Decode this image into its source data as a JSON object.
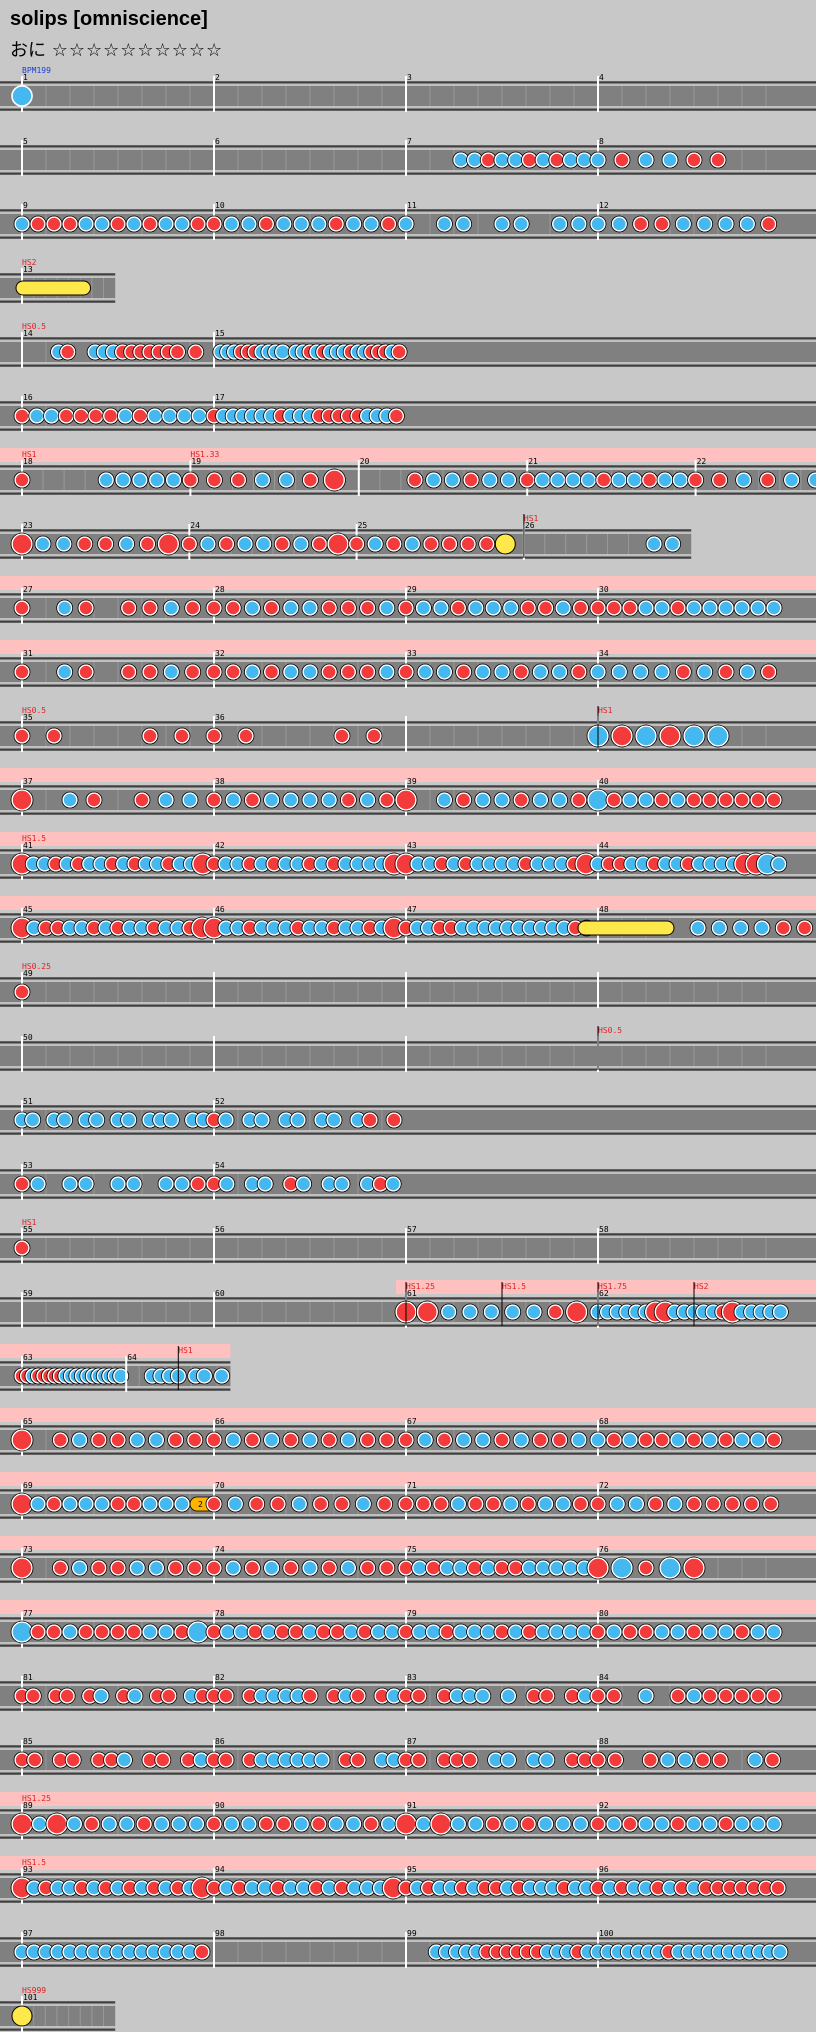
{
  "header": {
    "title": "solips [omniscience]",
    "difficulty_label": "おに",
    "stars": "☆☆☆☆☆☆☆☆☆☆"
  },
  "colors": {
    "background": "#c8c8c8",
    "lane": "#808080",
    "lane_line": "#ffffff",
    "scroll_zone": "#ffc0c0",
    "don": "#f33b3b",
    "ka": "#45b8ef",
    "roll": "#ffe84a",
    "balloon": "#ffb400",
    "bpm_text": "#1a3fd1",
    "hs_text": "#e02020"
  },
  "legend": {
    "don_icon": "red-circle-icon",
    "ka_icon": "blue-circle-icon",
    "roll_icon": "yellow-drumroll-icon",
    "balloon_icon": "balloon-icon"
  },
  "labels": {
    "bpm": [
      "BPM199"
    ],
    "hs": [
      "HS2",
      "HS0.5",
      "HS1",
      "HS1.33",
      "HS1",
      "HS0.5",
      "HS1",
      "HS1.5",
      "HS0.25",
      "HS0.5",
      "HS1",
      "HS1.25",
      "HS1.5",
      "HS1.75",
      "HS2",
      "HS1",
      "HS1.25",
      "HS1.5",
      "HS999"
    ],
    "balloon_hits": "2"
  },
  "rows": [
    {
      "hs": [
        {
          "t": "BPM199",
          "cls": "bpm",
          "bar": 0
        }
      ],
      "bars": [
        {
          "n": "1",
          "notes": "o.............................................................................................................................................................................................................................."
        },
        {
          "n": "2",
          "notes": ""
        },
        {
          "n": "3",
          "notes": ""
        },
        {
          "n": "4",
          "notes": ""
        }
      ]
    },
    {
      "bars": [
        {
          "n": "5",
          "notes": ""
        },
        {
          "n": "6",
          "notes": ""
        },
        {
          "n": "7",
          "notes": "....kkdkkdkdkk"
        },
        {
          "n": "8",
          "notes": "kdkkdd"
        }
      ]
    },
    {
      "bars": [
        {
          "n": "9",
          "notes": "kdddkkdkdkkd"
        },
        {
          "n": "10",
          "notes": "dkkdkkkdkkd"
        },
        {
          "n": "11",
          "notes": "k.kk.kk.kk"
        },
        {
          "n": "12",
          "notes": "kkddkkkkd"
        }
      ]
    },
    {
      "short": true,
      "hs": [
        {
          "t": "HS2",
          "bar": 0
        }
      ],
      "bars": [
        {
          "n": "13",
          "roll": true
        }
      ]
    },
    {
      "hs": [
        {
          "t": "HS0.5",
          "bar": 0
        }
      ],
      "bars": [
        {
          "n": "14",
          "notes": "....kd..kkkddddddd.d."
        },
        {
          "n": "15",
          "notes": ".kkkdddkkkk.kkdkdkkkdkkdddkd"
        }
      ]
    },
    {
      "bars": [
        {
          "n": "16",
          "notes": "dkkddddkdkkkk"
        },
        {
          "n": "17",
          "notes": "dkkkkkkdkkkdddddkkkd"
        }
      ]
    },
    {
      "short": true,
      "pink": true,
      "hs": [
        {
          "t": "HS1",
          "bar": 0
        },
        {
          "t": "HS1.33",
          "bar": 1
        }
      ],
      "bars": [
        {
          "n": "18",
          "notes": "d....kkkkk"
        },
        {
          "n": "19",
          "notes": "dddkkdD"
        },
        {
          "n": "20",
          "notes": "...dkkdkk"
        },
        {
          "n": "21",
          "notes": "dkkkkdkkdkk"
        },
        {
          "n": "22",
          "notes": "ddkdkkk"
        }
      ]
    },
    {
      "short": true,
      "hs": [
        {
          "t": "HS1",
          "bar": 3
        }
      ],
      "bars": [
        {
          "n": "23",
          "notes": "DkkddkdD"
        },
        {
          "n": "24",
          "notes": "dkdkkdkdD"
        },
        {
          "n": "25",
          "notes": "dkdkddddY"
        },
        {
          "n": "26",
          "notes": ".......kk"
        }
      ]
    },
    {
      "pink": true,
      "bars": [
        {
          "n": "27",
          "notes": "d.kd.ddkd"
        },
        {
          "n": "28",
          "notes": "ddkdkkdddk"
        },
        {
          "n": "29",
          "notes": "dkkdkkkddkd"
        },
        {
          "n": "30",
          "notes": "dddkkdkkkkkk"
        }
      ]
    },
    {
      "pink": true,
      "bars": [
        {
          "n": "31",
          "notes": "d.kd.ddkd"
        },
        {
          "n": "32",
          "notes": "ddkdkkdddk"
        },
        {
          "n": "33",
          "notes": "dkkdkkdkkd"
        },
        {
          "n": "34",
          "notes": "kkkkdkdkd"
        }
      ]
    },
    {
      "hs": [
        {
          "t": "HS0.5",
          "bar": 0
        },
        {
          "t": "HS1",
          "bar": 3
        }
      ],
      "bars": [
        {
          "n": "35",
          "notes": "d.d.....d.d."
        },
        {
          "n": "36",
          "notes": "d.d.....d.d."
        },
        {
          "n": "",
          "notes": ""
        },
        {
          "n": "",
          "notes": "KDKDKK"
        }
      ]
    },
    {
      "pink": true,
      "bars": [
        {
          "n": "37",
          "notes": "D.kd.dkk"
        },
        {
          "n": "38",
          "notes": "dkdkkkkdkd"
        },
        {
          "n": "39",
          "notes": "D.kdkkdkkd"
        },
        {
          "n": "40",
          "notes": "Kdkkdkdddddd"
        }
      ]
    },
    {
      "pink": true,
      "hs": [
        {
          "t": "HS1.5",
          "bar": 0
        }
      ],
      "bars": [
        {
          "n": "41",
          "notes": "DkkdkdkkdkdkkdkkD"
        },
        {
          "n": "42",
          "notes": "dkkdkdkkdkdkkkkD"
        },
        {
          "n": "43",
          "notes": "DkkdkdkkkkdkkkdD"
        },
        {
          "n": "44",
          "notes": "kddkkdkkdkkkkDDKk"
        }
      ]
    },
    {
      "pink": true,
      "bars": [
        {
          "n": "45",
          "notes": "DkddkkdkdkkdkkdD"
        },
        {
          "n": "46",
          "notes": "DkkdkkkdkkdkkdkD"
        },
        {
          "n": "47",
          "notes": "dkkddkkkkkkkkkkdk"
        },
        {
          "n": "48",
          "roll2": true,
          "notes": "kkkkddddd"
        }
      ]
    },
    {
      "hs": [
        {
          "t": "HS0.25",
          "bar": 0
        }
      ],
      "bars": [
        {
          "n": "49",
          "notes": "d"
        },
        {
          "n": "",
          "notes": ""
        },
        {
          "n": "",
          "notes": ""
        },
        {
          "n": "",
          "notes": ""
        }
      ]
    },
    {
      "hs": [
        {
          "t": "HS0.5",
          "bar": 3
        }
      ],
      "bars": [
        {
          "n": "50",
          "notes": ""
        },
        {
          "n": "",
          "notes": ""
        },
        {
          "n": "",
          "notes": ""
        },
        {
          "n": "",
          "notes": ""
        }
      ]
    },
    {
      "bars": [
        {
          "n": "51",
          "notes": "kk.kk.kk.kk.kkk.kk"
        },
        {
          "n": "52",
          "notes": "dk.kk.kk.kk.kd.d"
        }
      ]
    },
    {
      "bars": [
        {
          "n": "53",
          "notes": "dk.kk.kk.kkd"
        },
        {
          "n": "54",
          "notes": "dk.kk.dk.kk.kdk"
        }
      ]
    },
    {
      "hs": [
        {
          "t": "HS1",
          "bar": 0
        }
      ],
      "bars": [
        {
          "n": "55",
          "notes": "d"
        },
        {
          "n": "56",
          "notes": ""
        },
        {
          "n": "57",
          "notes": ""
        },
        {
          "n": "58",
          "notes": ""
        }
      ]
    },
    {
      "pink2": true,
      "hs": [
        {
          "t": "HS1.25",
          "bar": 2
        },
        {
          "t": "HS1.5",
          "bar": 2.5
        },
        {
          "t": "HS1.75",
          "bar": 3
        },
        {
          "t": "HS2",
          "bar": 3.5
        }
      ],
      "bars": [
        {
          "n": "59",
          "notes": ""
        },
        {
          "n": "60",
          "notes": ""
        },
        {
          "n": "61",
          "notes": "DDkkkkkdD"
        },
        {
          "n": "62",
          "notes": "kkkkkkDDkkkkkdDkkkkk"
        }
      ]
    },
    {
      "short": true,
      "pink": true,
      "hs": [
        {
          "t": "HS1",
          "bar": 1.5
        }
      ],
      "bars": [
        {
          "n": "63",
          "notes": "ddkdddddkkkkkkkkkkk"
        },
        {
          "n": "64",
          "notes": "...kkkk.kk.k"
        }
      ]
    },
    {
      "pink": true,
      "bars": [
        {
          "n": "65",
          "notes": "D.dkddkkdd"
        },
        {
          "n": "66",
          "notes": "dkdkdkdkdd"
        },
        {
          "n": "67",
          "notes": "dkdkkdkddk"
        },
        {
          "n": "68",
          "notes": "kdkddkdkdkkd"
        }
      ]
    },
    {
      "pink": true,
      "bars": [
        {
          "n": "69",
          "notes": "DkdkkkddkkkB"
        },
        {
          "n": "70",
          "notes": "dkddkddkd"
        },
        {
          "n": "71",
          "notes": "dddkddkdkkd"
        },
        {
          "n": "72",
          "notes": "dkkdkddddd"
        }
      ]
    },
    {
      "pink": true,
      "bars": [
        {
          "n": "73",
          "notes": "D.dkddkkdd"
        },
        {
          "n": "74",
          "notes": "dkdkdkdkdd"
        },
        {
          "n": "75",
          "notes": "dkdkkdkddkkkkk"
        },
        {
          "n": "76",
          "notes": "DKdKD"
        }
      ]
    },
    {
      "pink": true,
      "bars": [
        {
          "n": "77",
          "notes": "KddkddddkkdK"
        },
        {
          "n": "78",
          "notes": "dkkdkddkddkdkk"
        },
        {
          "n": "79",
          "notes": "dkkdkkkdkdkkkk"
        },
        {
          "n": "80",
          "notes": "dkddkkdkkdkk"
        }
      ]
    },
    {
      "bars": [
        {
          "n": "81",
          "notes": "dd.dd.dk.dk.dd.kd"
        },
        {
          "n": "82",
          "notes": "dd.dkkkkd.dkd.dk"
        },
        {
          "n": "83",
          "notes": "dd.dkkk.k.dd.dk"
        },
        {
          "n": "84",
          "notes": "dd.k.dkddddd"
        }
      ]
    },
    {
      "bars": [
        {
          "n": "85",
          "notes": "dd.dd.ddk.dd.dk"
        },
        {
          "n": "86",
          "notes": "dd.dkkkkkk.dd.kk"
        },
        {
          "n": "87",
          "notes": "dd.ddd.kk.kk.dd"
        },
        {
          "n": "88",
          "notes": "dd.dkkdd.kd"
        }
      ]
    },
    {
      "pink": true,
      "hs": [
        {
          "t": "HS1.25",
          "bar": 0
        }
      ],
      "bars": [
        {
          "n": "89",
          "notes": "DkDkdkkdkkk"
        },
        {
          "n": "90",
          "notes": "dkkddkdkkdk"
        },
        {
          "n": "91",
          "notes": "DkDkkdkdkkk"
        },
        {
          "n": "92",
          "notes": "dkdkkdkkdkkk"
        }
      ]
    },
    {
      "pink": true,
      "hs": [
        {
          "t": "HS1.5",
          "bar": 0
        }
      ],
      "bars": [
        {
          "n": "93",
          "notes": "DkdkkdkdkdkdkdkD"
        },
        {
          "n": "94",
          "notes": "dkdkkdkkdkdkkkD"
        },
        {
          "n": "95",
          "notes": "dkdkkdkddkdkkkdkk"
        },
        {
          "n": "96",
          "notes": "dkdkkdkdkddddddd"
        }
      ]
    },
    {
      "bars": [
        {
          "n": "97",
          "notes": "kkkkkkkkkkkkkkkd"
        },
        {
          "n": "98",
          "notes": ""
        },
        {
          "n": "99",
          "notes": "...kkkkkddddddkkkdk"
        },
        {
          "n": "100",
          "notes": "kkkkkkkdkkkkkkkkkkk"
        }
      ]
    },
    {
      "short": true,
      "hs": [
        {
          "t": "HS999",
          "bar": 0
        }
      ],
      "bars": [
        {
          "n": "101",
          "notes": "Y"
        }
      ]
    }
  ]
}
